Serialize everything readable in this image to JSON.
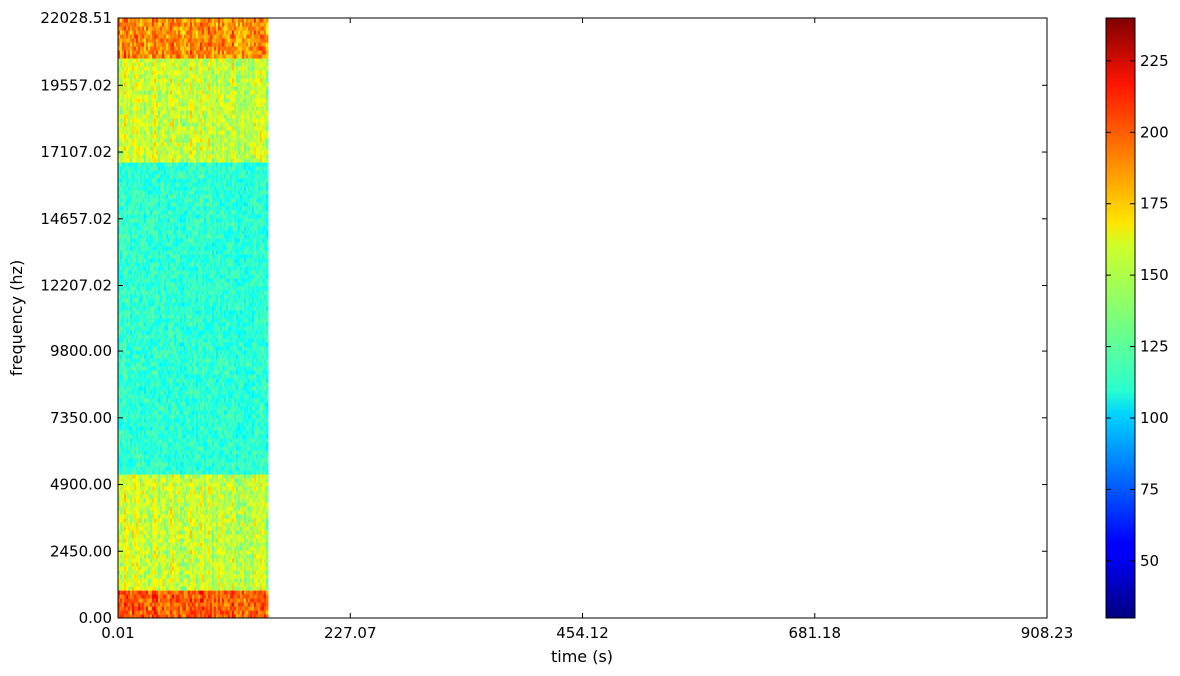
{
  "chart_data": {
    "type": "heatmap",
    "title": "",
    "xlabel": "time (s)",
    "ylabel": "frequency (hz)",
    "xlim": [
      0.01,
      908.23
    ],
    "ylim": [
      0.0,
      22028.51
    ],
    "x_ticks": [
      "0.01",
      "227.07",
      "454.12",
      "681.18",
      "908.23"
    ],
    "y_ticks": [
      "0.00",
      "2450.00",
      "4900.00",
      "7350.00",
      "9800.00",
      "12207.02",
      "14657.02",
      "17107.02",
      "19557.02",
      "22028.51"
    ],
    "data_time_range": [
      0.01,
      146.5
    ],
    "colormap": "jet",
    "colorbar": {
      "range": [
        30,
        240
      ],
      "ticks": [
        "50",
        "75",
        "100",
        "125",
        "150",
        "175",
        "200",
        "225"
      ]
    },
    "bands": [
      {
        "freq_range": [
          0,
          1100
        ],
        "level": 195
      },
      {
        "freq_range": [
          1100,
          5250
        ],
        "level": 150
      },
      {
        "freq_range": [
          5250,
          16800
        ],
        "level": 118
      },
      {
        "freq_range": [
          16800,
          20500
        ],
        "level": 150
      },
      {
        "freq_range": [
          20500,
          22028.51
        ],
        "level": 185
      }
    ]
  }
}
